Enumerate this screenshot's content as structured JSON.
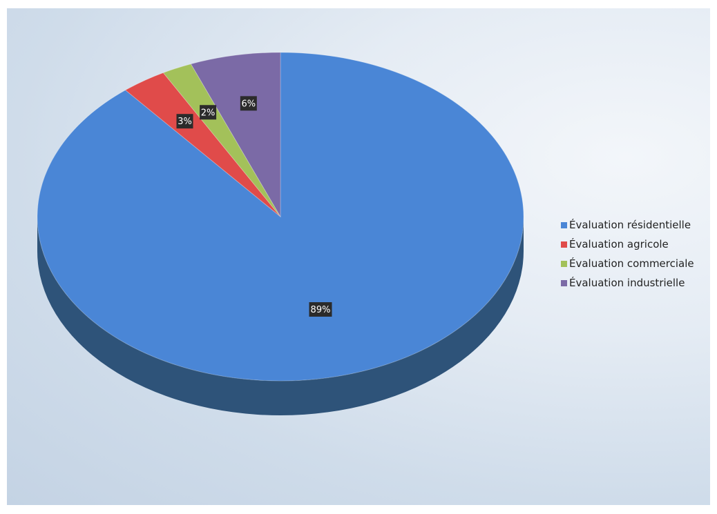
{
  "chart_data": {
    "type": "pie",
    "title": "",
    "style": "3d",
    "legend_position": "right",
    "categories": [
      "Évaluation résidentielle",
      "Évaluation agricole",
      "Évaluation commerciale",
      "Évaluation industrielle"
    ],
    "values": [
      89,
      3,
      2,
      6
    ],
    "labels": [
      "89%",
      "3%",
      "2%",
      "6%"
    ],
    "colors": [
      "#4a86d6",
      "#e04b4a",
      "#a3c15a",
      "#7b6aa6"
    ],
    "side_colors": [
      "#2e5379",
      "#7e2a28",
      "#5e7030",
      "#46395f"
    ]
  }
}
